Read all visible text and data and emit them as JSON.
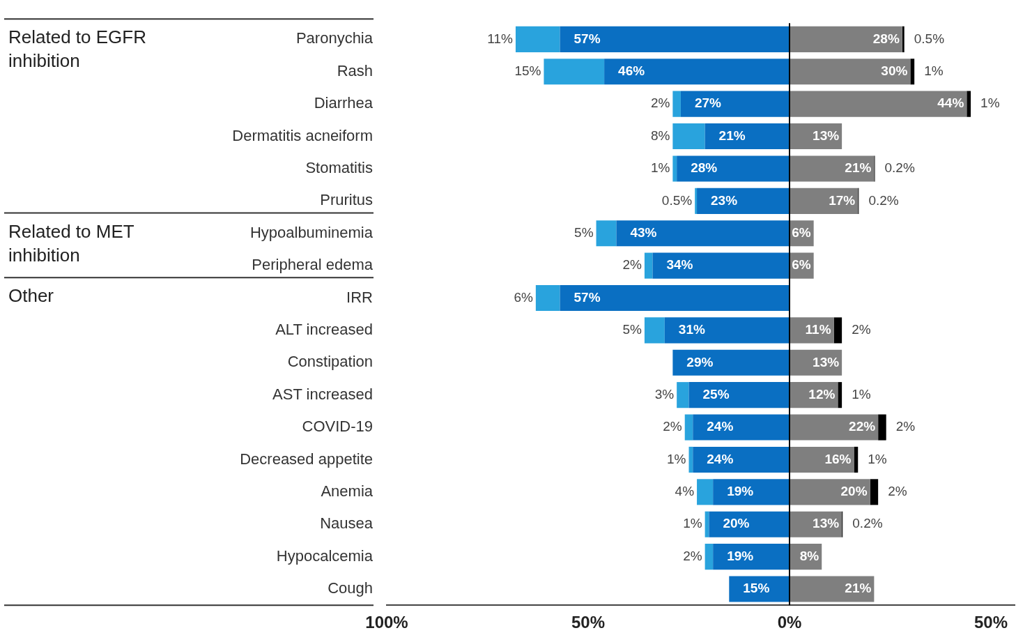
{
  "chart_data": {
    "type": "bar",
    "orientation": "horizontal",
    "categories": [
      "Paronychia",
      "Rash",
      "Diarrhea",
      "Dermatitis acneiform",
      "Stomatitis",
      "Pruritus",
      "Hypoalbuminemia",
      "Peripheral edema",
      "IRR",
      "ALT increased",
      "Constipation",
      "AST increased",
      "COVID-19",
      "Decreased appetite",
      "Anemia",
      "Nausea",
      "Hypocalcemia",
      "Cough"
    ],
    "series": [
      {
        "color": "#0a6fc2",
        "values": [
          57,
          46,
          27,
          21,
          28,
          23,
          43,
          34,
          57,
          31,
          29,
          25,
          24,
          24,
          19,
          20,
          19,
          15
        ],
        "base": [
          -57,
          -46,
          -27,
          -21,
          -28,
          -23,
          -43,
          -34,
          -57,
          -31,
          -29,
          -25,
          -24,
          -24,
          -19,
          -20,
          -19,
          -15
        ],
        "value_labels": [
          "57%",
          "46%",
          "27%",
          "21%",
          "28%",
          "23%",
          "43%",
          "34%",
          "57%",
          "31%",
          "29%",
          "25%",
          "24%",
          "24%",
          "19%",
          "20%",
          "19%",
          "15%"
        ]
      },
      {
        "color": "#29a3dd",
        "values": [
          11,
          15,
          2,
          8,
          1,
          0.5,
          5,
          2,
          6,
          5,
          null,
          3,
          2,
          1,
          4,
          1,
          2,
          null
        ],
        "base": [
          -68,
          -61,
          -29,
          -29,
          -29,
          -23.5,
          -48,
          -36,
          -63,
          -36,
          null,
          -28,
          -26,
          -25,
          -23,
          -21,
          -21,
          null
        ],
        "value_labels": [
          "11%",
          "15%",
          "2%",
          "8%",
          "1%",
          "0.5%",
          "5%",
          "2%",
          "6%",
          "5%",
          null,
          "3%",
          "2%",
          "1%",
          "4%",
          "1%",
          "2%",
          null
        ]
      },
      {
        "color": "#7f7f7f",
        "values": [
          28,
          30,
          44,
          13,
          21,
          17,
          6,
          6,
          null,
          11,
          13,
          12,
          22,
          16,
          20,
          13,
          8,
          21
        ],
        "base": [
          0,
          0,
          0,
          0,
          0,
          0,
          0,
          0,
          null,
          0,
          0,
          0,
          0,
          0,
          0,
          0,
          0,
          0
        ],
        "value_labels": [
          "28%",
          "30%",
          "44%",
          "13%",
          "21%",
          "17%",
          "6%",
          "6%",
          null,
          "11%",
          "13%",
          "12%",
          "22%",
          "16%",
          "20%",
          "13%",
          "8%",
          "21%"
        ]
      },
      {
        "color": "#000000",
        "values": [
          0.5,
          1,
          1,
          null,
          0.2,
          0.2,
          null,
          null,
          null,
          2,
          null,
          1,
          2,
          1,
          2,
          0.2,
          null,
          null
        ],
        "base": [
          28,
          30,
          44,
          null,
          21,
          17,
          null,
          null,
          null,
          11,
          null,
          12,
          22,
          16,
          20,
          13,
          null,
          null
        ],
        "value_labels": [
          "0.5%",
          "1%",
          "1%",
          null,
          "0.2%",
          "0.2%",
          null,
          null,
          null,
          "2%",
          null,
          "1%",
          "2%",
          "1%",
          "2%",
          "0.2%",
          null,
          null
        ]
      }
    ],
    "xlim": [
      -100,
      56
    ],
    "xticks": [
      {
        "value": -100,
        "label": "100%"
      },
      {
        "value": -50,
        "label": "50%"
      },
      {
        "value": 0,
        "label": "0%"
      },
      {
        "value": 50,
        "label": "50%"
      }
    ],
    "ref_lines": [
      {
        "axis": "x",
        "value": 0,
        "color": "#000000"
      }
    ],
    "annotations": [
      "Related to EGFR inhibition",
      "Related to MET inhibition",
      "Other"
    ],
    "grid": false,
    "legend": false
  }
}
